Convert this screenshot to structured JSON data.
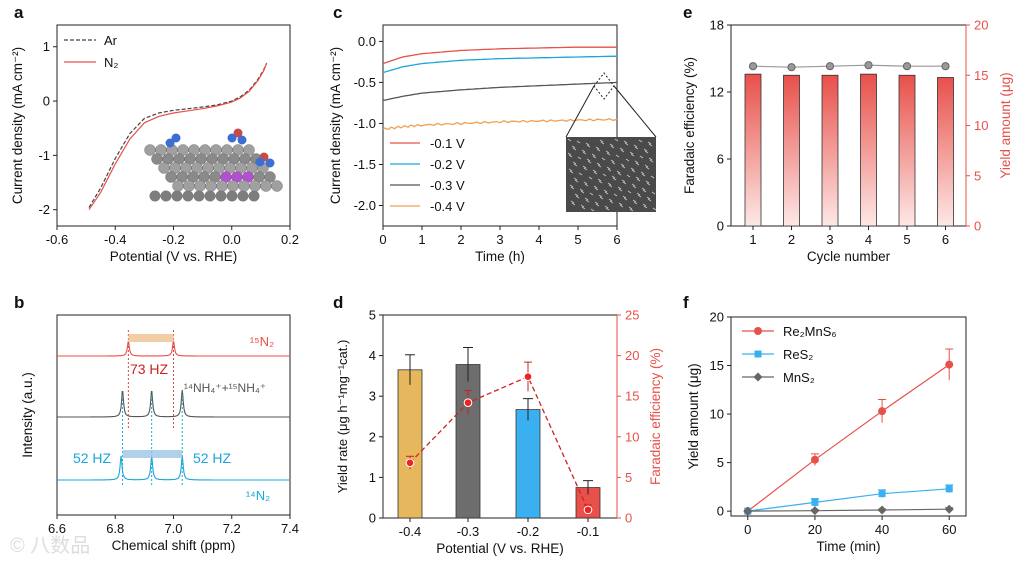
{
  "colors": {
    "red": "#e8504a",
    "red_light": "#f3a7a2",
    "cyan": "#1ba6d9",
    "gray": "#555555",
    "orange": "#f0a050",
    "gold": "#e6b75c",
    "darkgray": "#6d6d6d",
    "blue": "#3ab0f0",
    "darkred": "#cc2222",
    "axis_red": "#e8504a"
  },
  "watermark": "© 八数品",
  "chart_data": [
    {
      "panel": "a",
      "type": "line",
      "xlabel": "Potential (V vs. RHE)",
      "ylabel": "Current density (mA cm⁻²)",
      "xlim": [
        -0.6,
        0.2
      ],
      "ylim": [
        -2.3,
        1.4
      ],
      "xticks": [
        "-0.6",
        "-0.4",
        "-0.2",
        "0.0",
        "0.2"
      ],
      "yticks": [
        "-2",
        "-1",
        "0",
        "1"
      ],
      "legend_position": "top-left",
      "series": [
        {
          "name": "Ar",
          "style": "dashed",
          "x": [
            -0.49,
            -0.45,
            -0.4,
            -0.35,
            -0.3,
            -0.25,
            -0.2,
            -0.15,
            -0.1,
            -0.05,
            0.0,
            0.03,
            0.06,
            0.09,
            0.11,
            0.12
          ],
          "y": [
            -1.96,
            -1.6,
            -1.06,
            -0.6,
            -0.32,
            -0.22,
            -0.17,
            -0.14,
            -0.11,
            -0.07,
            0.0,
            0.08,
            0.2,
            0.4,
            0.58,
            0.7
          ]
        },
        {
          "name": "N₂",
          "style": "solid",
          "x": [
            -0.49,
            -0.45,
            -0.4,
            -0.35,
            -0.3,
            -0.25,
            -0.2,
            -0.15,
            -0.1,
            -0.05,
            0.0,
            0.03,
            0.06,
            0.09,
            0.11,
            0.12
          ],
          "y": [
            -2.0,
            -1.68,
            -1.16,
            -0.7,
            -0.4,
            -0.28,
            -0.22,
            -0.18,
            -0.14,
            -0.09,
            -0.02,
            0.06,
            0.18,
            0.38,
            0.56,
            0.7
          ]
        }
      ]
    },
    {
      "panel": "b",
      "type": "line",
      "xlabel": "Chemical shift (ppm)",
      "ylabel": "Intensity (a.u.)",
      "xlim": [
        6.6,
        7.4
      ],
      "xticks": [
        "6.6",
        "6.8",
        "7.0",
        "7.2",
        "7.4"
      ],
      "traces": [
        {
          "label": "¹⁵N₂",
          "peaks": [
            6.845,
            7.0
          ]
        },
        {
          "label": "¹⁴NH₄⁺+¹⁵NH₄⁺",
          "peaks": [
            6.825,
            6.925,
            7.03
          ]
        },
        {
          "label": "¹⁴N₂",
          "peaks": [
            6.82,
            6.925,
            7.03
          ]
        }
      ],
      "annotations": [
        "73 HZ",
        "52 HZ",
        "52 HZ"
      ]
    },
    {
      "panel": "c",
      "type": "line",
      "xlabel": "Time (h)",
      "ylabel": "Current density (mA cm⁻²)",
      "xlim": [
        0,
        6
      ],
      "ylim": [
        -2.25,
        0.2
      ],
      "xticks": [
        "0",
        "1",
        "2",
        "3",
        "4",
        "5",
        "6"
      ],
      "yticks": [
        "0.0",
        "-0.5",
        "-1.0",
        "-1.5",
        "-2.0"
      ],
      "legend_position": "bottom-left",
      "series": [
        {
          "name": "-0.1 V",
          "x": [
            0,
            0.5,
            1,
            2,
            3,
            4,
            5,
            6
          ],
          "y": [
            -0.27,
            -0.19,
            -0.15,
            -0.11,
            -0.09,
            -0.08,
            -0.07,
            -0.07
          ]
        },
        {
          "name": "-0.2 V",
          "x": [
            0,
            0.5,
            1,
            2,
            3,
            4,
            5,
            6
          ],
          "y": [
            -0.38,
            -0.31,
            -0.27,
            -0.23,
            -0.21,
            -0.2,
            -0.19,
            -0.18
          ]
        },
        {
          "name": "-0.3 V",
          "x": [
            0,
            0.5,
            1,
            2,
            3,
            4,
            5,
            6
          ],
          "y": [
            -0.72,
            -0.67,
            -0.63,
            -0.59,
            -0.56,
            -0.54,
            -0.52,
            -0.5
          ]
        },
        {
          "name": "-0.4 V",
          "x": [
            0,
            0.5,
            1,
            2,
            3,
            4,
            5,
            6
          ],
          "y": [
            -1.07,
            -1.04,
            -1.02,
            -1.0,
            -0.98,
            -0.97,
            -0.96,
            -0.95
          ]
        }
      ]
    },
    {
      "panel": "d",
      "type": "bar",
      "xlabel": "Potential (V vs. RHE)",
      "ylabel": "Yield rate (μg h⁻¹mg⁻¹cat.)",
      "ylabel_right": "Faradaic efficiency (%)",
      "categories": [
        "-0.4",
        "-0.3",
        "-0.2",
        "-0.1"
      ],
      "ylim": [
        0,
        5
      ],
      "ylim_right": [
        0,
        25
      ],
      "yticks": [
        "0",
        "1",
        "2",
        "3",
        "4",
        "5"
      ],
      "yticks_right": [
        "0",
        "5",
        "10",
        "15",
        "20",
        "25"
      ],
      "yield_rate": [
        3.65,
        3.78,
        2.67,
        0.75
      ],
      "yield_err": [
        0.37,
        0.42,
        0.27,
        0.17
      ],
      "faradaic_efficiency": [
        6.8,
        14.2,
        17.4,
        1.0
      ],
      "fe_err": [
        0.8,
        1.5,
        1.8,
        0.6
      ]
    },
    {
      "panel": "e",
      "type": "bar",
      "xlabel": "Cycle number",
      "ylabel": "Faradaic efficiency (%)",
      "ylabel_right": "Yield amount (μg)",
      "categories": [
        "1",
        "2",
        "3",
        "4",
        "5",
        "6"
      ],
      "ylim": [
        0,
        18
      ],
      "ylim_right": [
        0,
        20
      ],
      "yticks": [
        "0",
        "6",
        "12",
        "18"
      ],
      "yticks_right": [
        "0",
        "5",
        "10",
        "15",
        "20"
      ],
      "faradaic_efficiency": [
        13.6,
        13.5,
        13.5,
        13.6,
        13.5,
        13.3
      ],
      "yield_amount": [
        15.9,
        15.8,
        15.9,
        16.0,
        15.9,
        15.9
      ]
    },
    {
      "panel": "f",
      "type": "line",
      "xlabel": "Time (min)",
      "ylabel": "Yield amount (μg)",
      "xlim": [
        -5,
        65
      ],
      "ylim": [
        -0.5,
        20
      ],
      "xticks": [
        "0",
        "20",
        "40",
        "60"
      ],
      "yticks": [
        "0",
        "5",
        "10",
        "15",
        "20"
      ],
      "legend_position": "top-left",
      "series": [
        {
          "name": "Re₂MnS₆",
          "x": [
            0,
            20,
            40,
            60
          ],
          "y": [
            0,
            5.3,
            10.3,
            15.1
          ],
          "err": [
            0,
            0.6,
            1.2,
            1.6
          ]
        },
        {
          "name": "ReS₂",
          "x": [
            0,
            20,
            40,
            60
          ],
          "y": [
            0,
            0.9,
            1.8,
            2.3
          ],
          "err": [
            0,
            0.4,
            0.4,
            0.4
          ]
        },
        {
          "name": "MnS₂",
          "x": [
            0,
            20,
            40,
            60
          ],
          "y": [
            0,
            0.05,
            0.12,
            0.2
          ],
          "err": [
            0,
            0.1,
            0.1,
            0.15
          ]
        }
      ]
    }
  ]
}
